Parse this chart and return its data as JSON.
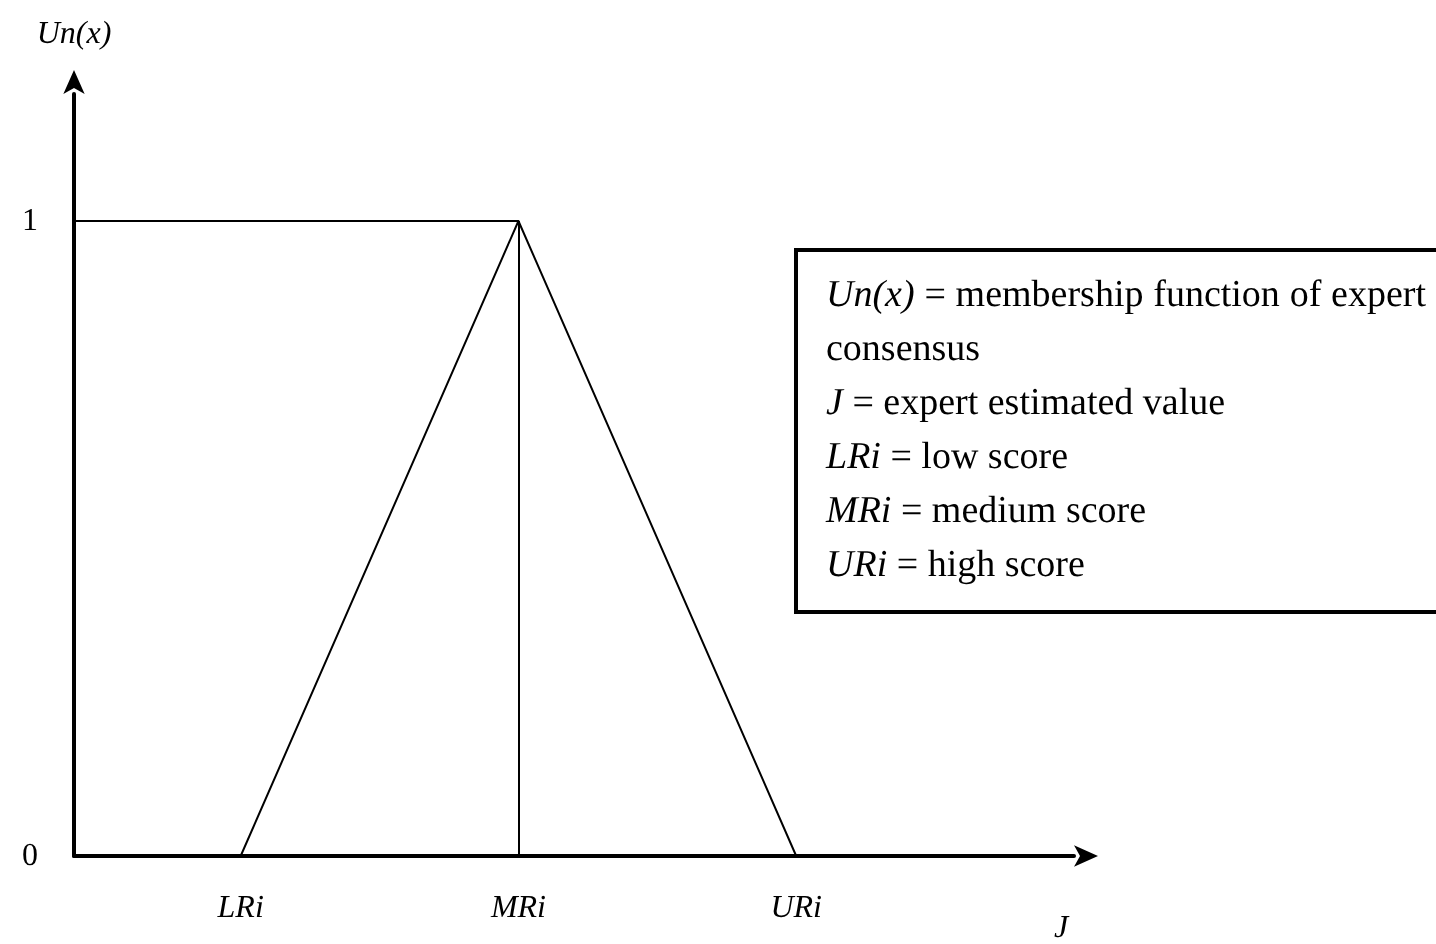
{
  "chart_data": {
    "type": "line",
    "xlabel": "J",
    "ylabel": "Un(x)",
    "categories": [
      null,
      null,
      null,
      "LRi",
      null,
      null,
      null,
      null,
      "MRi",
      null,
      null,
      null,
      null,
      "URi",
      null,
      null,
      null,
      null,
      null
    ],
    "ylim": [
      0,
      1.2
    ],
    "yticks": [
      0,
      1
    ],
    "series": [
      {
        "color": "#000000",
        "values": [
          1,
          1,
          1,
          1,
          1,
          1,
          1,
          1,
          1,
          null,
          null,
          null,
          null,
          null,
          null,
          null,
          null,
          null,
          null
        ]
      },
      {
        "color": "#000000",
        "values": [
          null,
          null,
          null,
          0,
          null,
          null,
          null,
          null,
          1,
          null,
          null,
          null,
          null,
          0,
          null,
          null,
          null,
          null,
          null
        ]
      }
    ],
    "ref_lines": [
      {
        "axis": "x",
        "value": "MRi",
        "color": "#000000"
      }
    ],
    "marker": "none",
    "line_style": "solid",
    "annotations": [
      "Un(x) = membership function of expert consensus",
      "J = expert estimated value",
      "LRi = low score",
      "MRi = medium score",
      "URi = high score"
    ]
  }
}
